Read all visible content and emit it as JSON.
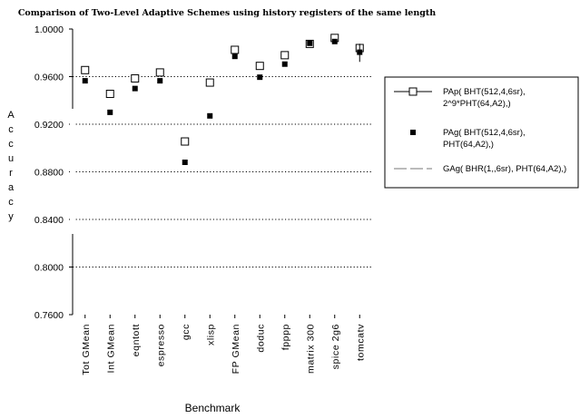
{
  "chart_data": {
    "type": "scatter",
    "title": "Comparison of Two-Level Adaptive Schemes using history registers of the same length",
    "xlabel": "Benchmark",
    "ylabel": "Accuracy",
    "ylim": [
      0.76,
      1.0
    ],
    "yticks": [
      "1.0000",
      "0.9600",
      "0.9200",
      "0.8800",
      "0.8400",
      "0.8000",
      "0.7600"
    ],
    "grid": "dotted horizontal",
    "legend_placement": "right",
    "categories": [
      "Tot GMean",
      "Int GMean",
      "eqntott",
      "espresso",
      "gcc",
      "xlisp",
      "FP GMean",
      "doduc",
      "fpppp",
      "matrix 300",
      "spice 2g6",
      "tomcatv"
    ],
    "series": [
      {
        "name": "PAp( BHT(512,4,6sr), 2^9*PHT(64,A2),)",
        "name_lines": [
          "PAp(  BHT(512,4,6sr),",
          "2^9*PHT(64,A2),)"
        ],
        "marker": "open-square",
        "values": [
          0.9655,
          0.9455,
          0.9585,
          0.9635,
          0.9055,
          0.955,
          0.9825,
          0.969,
          0.978,
          0.9875,
          0.9925,
          0.984
        ]
      },
      {
        "name": "PAg( BHT(512,4,6sr), PHT(64,A2),)",
        "name_lines": [
          "PAg(  BHT(512,4,6sr),",
          "PHT(64,A2),)"
        ],
        "marker": "filled-square",
        "values": [
          0.9565,
          0.93,
          0.95,
          0.9565,
          0.888,
          0.927,
          0.977,
          0.9595,
          0.9705,
          0.988,
          0.9895,
          0.9805
        ]
      },
      {
        "name": "GAg( BHR(1,,6sr), PHT(64,A2),)",
        "name_lines": [
          "GAg(  BHR(1,,6sr),  PHT(64,A2),)"
        ],
        "marker": "dashed-line",
        "values": [
          null,
          null,
          null,
          null,
          null,
          null,
          null,
          null,
          null,
          null,
          null,
          0.98
        ]
      }
    ]
  }
}
